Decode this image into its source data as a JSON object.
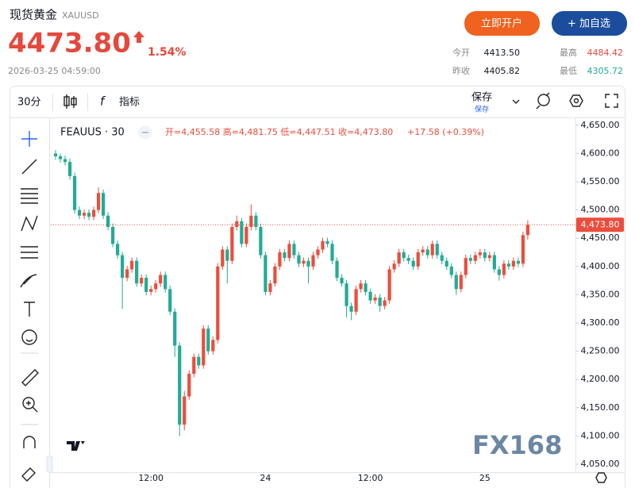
{
  "header": {
    "title": "现货黄金",
    "symbol": "XAUUSD",
    "price": "4473.80",
    "change": "1.54%",
    "time": "2026-03-25 04:59:00",
    "buttons": [
      "立即开户",
      "+ 加自选"
    ]
  },
  "stats": [
    {
      "label": "今开",
      "value": "4413.50"
    },
    {
      "label": "最高",
      "value": "4484.42"
    },
    {
      "label": "昨收",
      "value": "4405.82"
    },
    {
      "label": "最低",
      "value": "4305.72"
    }
  ],
  "toolbar": {
    "interval": "30分",
    "indicators": "指标",
    "save": "保存",
    "save_sub": "保存"
  },
  "watermark": "FX168",
  "chart_data": {
    "type": "candlestick",
    "legend": {
      "symbol": "FEAUUS · 30",
      "ohlc": "开=4,455.58 高=4,481.75 低=4,447.51 收=4,473.80",
      "change": "+17.58 (+0.39%)"
    },
    "x": [
      0,
      1,
      2,
      3,
      4,
      5,
      6,
      7,
      8,
      9,
      10,
      11,
      12,
      13,
      14,
      15,
      16,
      17,
      18,
      19,
      20,
      21,
      22,
      23,
      24,
      25,
      26,
      27,
      28,
      29,
      30,
      31,
      32,
      33,
      34,
      35,
      36,
      37,
      38,
      39,
      40,
      41,
      42,
      43,
      44,
      45,
      46,
      47,
      48,
      49,
      50,
      51,
      52,
      53,
      54,
      55,
      56,
      57,
      58,
      59,
      60,
      61,
      62,
      63,
      64,
      65,
      66,
      67,
      68,
      69,
      70,
      71,
      72,
      73,
      74,
      75,
      76,
      77,
      78,
      79,
      80,
      81,
      82,
      83,
      84,
      85,
      86,
      87,
      88,
      89,
      90,
      91,
      92,
      93,
      94,
      95,
      96,
      97,
      98,
      99
    ],
    "open": [
      4600,
      4595,
      4590,
      4585,
      4560,
      4500,
      4490,
      4495,
      4488,
      4500,
      4530,
      4490,
      4470,
      4440,
      4420,
      4380,
      4395,
      4410,
      4370,
      4380,
      4355,
      4360,
      4370,
      4385,
      4360,
      4320,
      4260,
      4120,
      4170,
      4210,
      4240,
      4225,
      4290,
      4250,
      4270,
      4400,
      4430,
      4410,
      4470,
      4480,
      4440,
      4470,
      4490,
      4470,
      4420,
      4355,
      4370,
      4400,
      4425,
      4415,
      4440,
      4420,
      4405,
      4410,
      4400,
      4420,
      4430,
      4445,
      4440,
      4410,
      4380,
      4370,
      4330,
      4320,
      4360,
      4370,
      4355,
      4340,
      4345,
      4330,
      4340,
      4395,
      4405,
      4425,
      4415,
      4410,
      4400,
      4425,
      4430,
      4420,
      4440,
      4420,
      4410,
      4400,
      4385,
      4360,
      4385,
      4415,
      4410,
      4420,
      4425,
      4415,
      4420,
      4395,
      4385,
      4405,
      4400,
      4410,
      4405,
      4455.58
    ],
    "high": [
      4606,
      4600,
      4596,
      4591,
      4566,
      4506,
      4501,
      4501,
      4506,
      4540,
      4536,
      4496,
      4476,
      4446,
      4426,
      4401,
      4416,
      4416,
      4386,
      4386,
      4366,
      4376,
      4391,
      4391,
      4366,
      4326,
      4266,
      4180,
      4216,
      4246,
      4246,
      4296,
      4296,
      4276,
      4406,
      4436,
      4436,
      4476,
      4490,
      4486,
      4476,
      4510,
      4496,
      4476,
      4426,
      4376,
      4406,
      4431,
      4431,
      4446,
      4446,
      4426,
      4416,
      4416,
      4426,
      4436,
      4451,
      4451,
      4446,
      4416,
      4386,
      4376,
      4336,
      4366,
      4376,
      4376,
      4361,
      4351,
      4351,
      4346,
      4401,
      4411,
      4431,
      4431,
      4421,
      4416,
      4431,
      4436,
      4436,
      4446,
      4446,
      4426,
      4416,
      4406,
      4391,
      4391,
      4421,
      4421,
      4426,
      4431,
      4431,
      4426,
      4426,
      4401,
      4411,
      4411,
      4416,
      4416,
      4462,
      4481.75
    ],
    "low": [
      4589,
      4584,
      4579,
      4554,
      4494,
      4484,
      4484,
      4482,
      4482,
      4494,
      4484,
      4464,
      4434,
      4414,
      4325,
      4374,
      4389,
      4364,
      4364,
      4349,
      4349,
      4354,
      4364,
      4354,
      4314,
      4240,
      4100,
      4110,
      4164,
      4204,
      4219,
      4219,
      4244,
      4244,
      4264,
      4394,
      4370,
      4404,
      4464,
      4434,
      4434,
      4464,
      4464,
      4414,
      4349,
      4349,
      4364,
      4394,
      4409,
      4409,
      4414,
      4399,
      4399,
      4370,
      4394,
      4414,
      4424,
      4434,
      4404,
      4374,
      4364,
      4310,
      4305,
      4314,
      4354,
      4349,
      4334,
      4334,
      4320,
      4324,
      4334,
      4389,
      4399,
      4409,
      4404,
      4394,
      4394,
      4419,
      4414,
      4414,
      4414,
      4404,
      4394,
      4379,
      4350,
      4354,
      4379,
      4404,
      4404,
      4414,
      4409,
      4409,
      4389,
      4375,
      4379,
      4394,
      4394,
      4399,
      4399,
      4447.51
    ],
    "close": [
      4595,
      4590,
      4585,
      4560,
      4500,
      4490,
      4495,
      4488,
      4500,
      4530,
      4490,
      4470,
      4440,
      4420,
      4380,
      4395,
      4410,
      4370,
      4380,
      4355,
      4360,
      4370,
      4385,
      4360,
      4320,
      4260,
      4120,
      4170,
      4210,
      4240,
      4225,
      4290,
      4250,
      4270,
      4400,
      4430,
      4410,
      4470,
      4480,
      4440,
      4470,
      4490,
      4470,
      4420,
      4355,
      4370,
      4400,
      4425,
      4415,
      4440,
      4420,
      4405,
      4410,
      4400,
      4420,
      4430,
      4445,
      4440,
      4410,
      4380,
      4370,
      4330,
      4320,
      4360,
      4370,
      4355,
      4340,
      4345,
      4330,
      4340,
      4395,
      4405,
      4425,
      4415,
      4410,
      4400,
      4425,
      4430,
      4420,
      4440,
      4420,
      4410,
      4400,
      4385,
      4360,
      4385,
      4415,
      4410,
      4420,
      4425,
      4415,
      4420,
      4395,
      4385,
      4405,
      4400,
      4410,
      4405,
      4455.58,
      4473.8
    ],
    "up_color": "#eb4d3d",
    "down_color": "#22ab94",
    "xlim": [
      -1,
      109
    ],
    "xticks": [
      {
        "value": 20,
        "label": "12:00"
      },
      {
        "value": 44,
        "label": "24"
      },
      {
        "value": 66,
        "label": "12:00"
      },
      {
        "value": 90,
        "label": "25"
      }
    ],
    "ylim": [
      4036,
      4661
    ],
    "yticks": [
      {
        "value": 4050,
        "label": "4,050.00"
      },
      {
        "value": 4100,
        "label": "4,100.00"
      },
      {
        "value": 4150,
        "label": "4,150.00"
      },
      {
        "value": 4200,
        "label": "4,200.00"
      },
      {
        "value": 4250,
        "label": "4,250.00"
      },
      {
        "value": 4300,
        "label": "4,300.00"
      },
      {
        "value": 4350,
        "label": "4,350.00"
      },
      {
        "value": 4400,
        "label": "4,400.00"
      },
      {
        "value": 4450,
        "label": "4,450.00"
      },
      {
        "value": 4500,
        "label": "4,500.00"
      },
      {
        "value": 4550,
        "label": "4,550.00"
      },
      {
        "value": 4600,
        "label": "4,600.00"
      },
      {
        "value": 4650,
        "label": "4,650.00"
      }
    ],
    "last_price": {
      "value": 4473.8,
      "label": "4,473.80"
    },
    "grid": false
  }
}
